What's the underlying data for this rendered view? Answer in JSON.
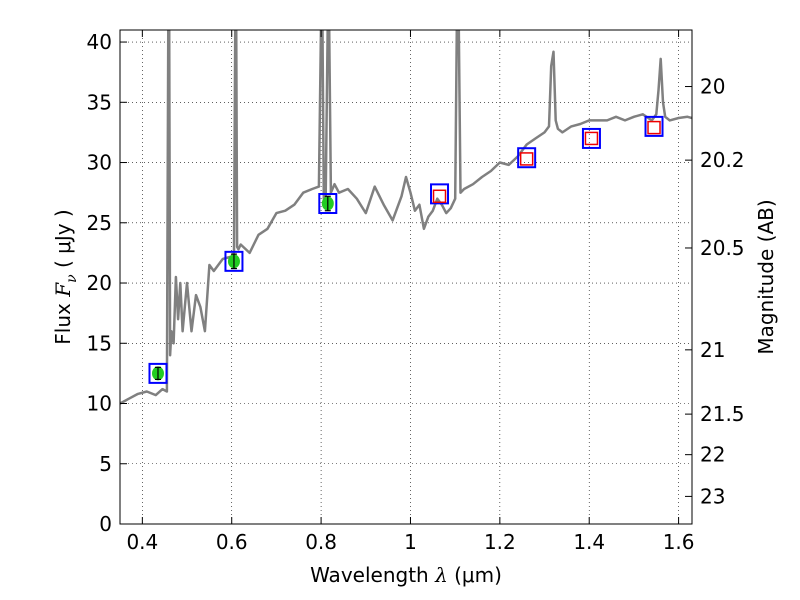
{
  "chart_data": {
    "type": "line",
    "xlabel_prefix": "Wavelength",
    "xlabel_symbol": "λ",
    "xlabel_unit": "(μm)",
    "ylabel_prefix": "Flux",
    "ylabel_symbol": "F",
    "ylabel_subscript": "ν",
    "ylabel_unit": "( μJy )",
    "y2label": "Magnitude (AB)",
    "xlim": [
      0.35,
      1.63
    ],
    "ylim": [
      0,
      41
    ],
    "grid": true,
    "x_ticks": [
      0.4,
      0.6,
      0.8,
      1.0,
      1.2,
      1.4,
      1.6
    ],
    "x_tick_labels": [
      "0.4",
      "0.6",
      "0.8",
      "1",
      "1.2",
      "1.4",
      "1.6"
    ],
    "y_ticks": [
      0,
      5,
      10,
      15,
      20,
      25,
      30,
      35,
      40
    ],
    "y_tick_labels": [
      "0",
      "5",
      "10",
      "15",
      "20",
      "25",
      "30",
      "35",
      "40"
    ],
    "y2_ticks": [
      {
        "mag": 20,
        "label": "20"
      },
      {
        "mag": 20.2,
        "label": "20.2"
      },
      {
        "mag": 20.5,
        "label": "20.5"
      },
      {
        "mag": 21,
        "label": "21"
      },
      {
        "mag": 21.5,
        "label": "21.5"
      },
      {
        "mag": 22,
        "label": "22"
      },
      {
        "mag": 23,
        "label": "23"
      }
    ],
    "colors": {
      "spectrum": "#808080",
      "model_box": "#0000ff",
      "obs_fill": "#22cc22",
      "nir_box": "#ee0000"
    },
    "spectrum": {
      "x": [
        0.35,
        0.37,
        0.39,
        0.41,
        0.43,
        0.445,
        0.455,
        0.458,
        0.46,
        0.462,
        0.465,
        0.47,
        0.475,
        0.48,
        0.485,
        0.49,
        0.5,
        0.51,
        0.52,
        0.53,
        0.54,
        0.55,
        0.56,
        0.58,
        0.6,
        0.605,
        0.608,
        0.61,
        0.612,
        0.615,
        0.62,
        0.64,
        0.66,
        0.68,
        0.7,
        0.72,
        0.74,
        0.76,
        0.78,
        0.795,
        0.8,
        0.803,
        0.806,
        0.81,
        0.815,
        0.818,
        0.822,
        0.83,
        0.84,
        0.86,
        0.88,
        0.9,
        0.92,
        0.94,
        0.96,
        0.98,
        0.99,
        1.0,
        1.01,
        1.02,
        1.03,
        1.04,
        1.05,
        1.06,
        1.07,
        1.08,
        1.09,
        1.1,
        1.104,
        1.108,
        1.112,
        1.12,
        1.14,
        1.16,
        1.18,
        1.2,
        1.22,
        1.24,
        1.26,
        1.28,
        1.3,
        1.31,
        1.315,
        1.32,
        1.325,
        1.33,
        1.34,
        1.36,
        1.38,
        1.4,
        1.42,
        1.44,
        1.46,
        1.48,
        1.5,
        1.52,
        1.54,
        1.55,
        1.555,
        1.56,
        1.565,
        1.57,
        1.58,
        1.6,
        1.62,
        1.63
      ],
      "y": [
        10.0,
        10.4,
        10.8,
        11.0,
        10.7,
        11.2,
        11.0,
        42,
        42,
        14.0,
        16.0,
        15.0,
        20.5,
        17.0,
        20.0,
        16.0,
        20.0,
        16.0,
        19.0,
        18.0,
        16.0,
        21.5,
        21.0,
        22.0,
        22.2,
        22.5,
        42,
        42,
        23.0,
        22.8,
        23.2,
        22.5,
        24.0,
        24.5,
        25.8,
        26.0,
        26.5,
        27.5,
        27.8,
        28.0,
        42,
        42,
        27.0,
        26.5,
        42,
        42,
        27.5,
        28.2,
        27.5,
        27.8,
        27.0,
        25.8,
        28.0,
        26.5,
        25.2,
        27.2,
        28.8,
        27.5,
        26.0,
        26.5,
        24.5,
        25.5,
        26.0,
        27.0,
        26.5,
        25.8,
        26.2,
        27.0,
        42,
        42,
        27.5,
        27.8,
        28.2,
        28.8,
        29.3,
        30.0,
        29.8,
        30.5,
        31.5,
        32.0,
        32.5,
        33.0,
        38.0,
        39.2,
        33.5,
        32.8,
        32.5,
        33.0,
        33.2,
        33.5,
        33.5,
        33.5,
        33.8,
        33.5,
        33.8,
        34.0,
        33.5,
        34.0,
        36.0,
        38.6,
        35.0,
        33.8,
        33.5,
        33.7,
        33.8,
        33.7
      ]
    },
    "photometry_observed": [
      {
        "x": 0.435,
        "y": 12.5,
        "yerr": 0.5,
        "model": 12.5
      },
      {
        "x": 0.605,
        "y": 21.8,
        "yerr": 0.6,
        "model": 21.8
      },
      {
        "x": 0.815,
        "y": 26.6,
        "yerr": 0.6,
        "model": 26.6
      }
    ],
    "photometry_nir": [
      {
        "x": 1.065,
        "y": 27.2,
        "model": 27.4
      },
      {
        "x": 1.26,
        "y": 30.3,
        "model": 30.4
      },
      {
        "x": 1.405,
        "y": 32.0,
        "model": 32.0
      },
      {
        "x": 1.545,
        "y": 32.9,
        "model": 33.0
      }
    ]
  }
}
